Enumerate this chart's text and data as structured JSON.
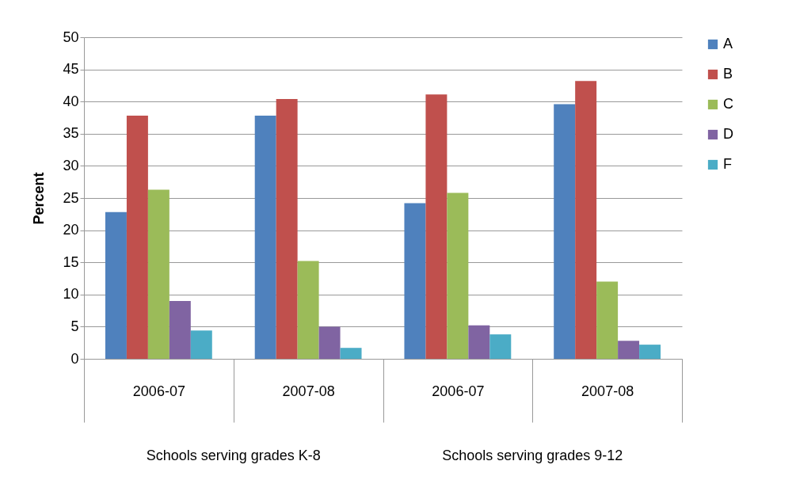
{
  "chart_data": {
    "type": "bar",
    "ylabel": "Percent",
    "categories": [
      "2006-07",
      "2007-08",
      "2006-07",
      "2007-08"
    ],
    "annotations": [
      "Schools serving grades  K-8",
      "Schools serving grades 9-12"
    ],
    "series": [
      {
        "name": "A",
        "color": "#4f81bd",
        "values": [
          22.8,
          37.8,
          24.2,
          39.6
        ]
      },
      {
        "name": "B",
        "color": "#c0504d",
        "values": [
          37.8,
          40.4,
          41.1,
          43.2
        ]
      },
      {
        "name": "C",
        "color": "#9bbb59",
        "values": [
          26.3,
          15.2,
          25.8,
          12.0
        ]
      },
      {
        "name": "D",
        "color": "#8064a2",
        "values": [
          9.0,
          5.0,
          5.2,
          2.8
        ]
      },
      {
        "name": "F",
        "color": "#4bacc6",
        "values": [
          4.4,
          1.7,
          3.8,
          2.2
        ]
      }
    ],
    "ylim": [
      0,
      50
    ],
    "yticks": [
      0,
      5,
      10,
      15,
      20,
      25,
      30,
      35,
      40,
      45,
      50
    ],
    "grid": "y",
    "legend": "right"
  }
}
